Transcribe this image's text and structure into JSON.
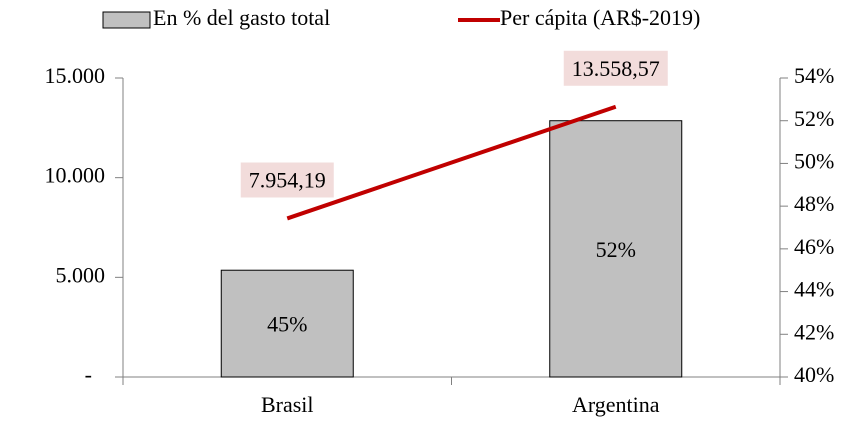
{
  "chart_data": {
    "type": "bar",
    "categories": [
      "Brasil",
      "Argentina"
    ],
    "series": [
      {
        "name": "En % del gasto total",
        "type": "bar",
        "axis": "y2",
        "color": "#c0c0c0",
        "values": [
          45,
          52
        ],
        "value_labels": [
          "45%",
          "52%"
        ]
      },
      {
        "name": "Per cápita (AR$-2019)",
        "type": "line",
        "axis": "y",
        "color": "#c00000",
        "values": [
          7954.19,
          13558.57
        ],
        "value_labels": [
          "7.954,19",
          "13.558,57"
        ],
        "label_background": "#f2dcdb"
      }
    ],
    "ylim": [
      0,
      15000
    ],
    "yticks": [
      {
        "value": 0,
        "label": "-"
      },
      {
        "value": 5000,
        "label": "5.000"
      },
      {
        "value": 10000,
        "label": "10.000"
      },
      {
        "value": 15000,
        "label": "15.000"
      }
    ],
    "y2lim": [
      40,
      54
    ],
    "y2ticks": [
      {
        "value": 40,
        "label": "40%"
      },
      {
        "value": 42,
        "label": "42%"
      },
      {
        "value": 44,
        "label": "44%"
      },
      {
        "value": 46,
        "label": "46%"
      },
      {
        "value": 48,
        "label": "48%"
      },
      {
        "value": 50,
        "label": "50%"
      },
      {
        "value": 52,
        "label": "52%"
      },
      {
        "value": 54,
        "label": "54%"
      }
    ],
    "legend": "top"
  }
}
